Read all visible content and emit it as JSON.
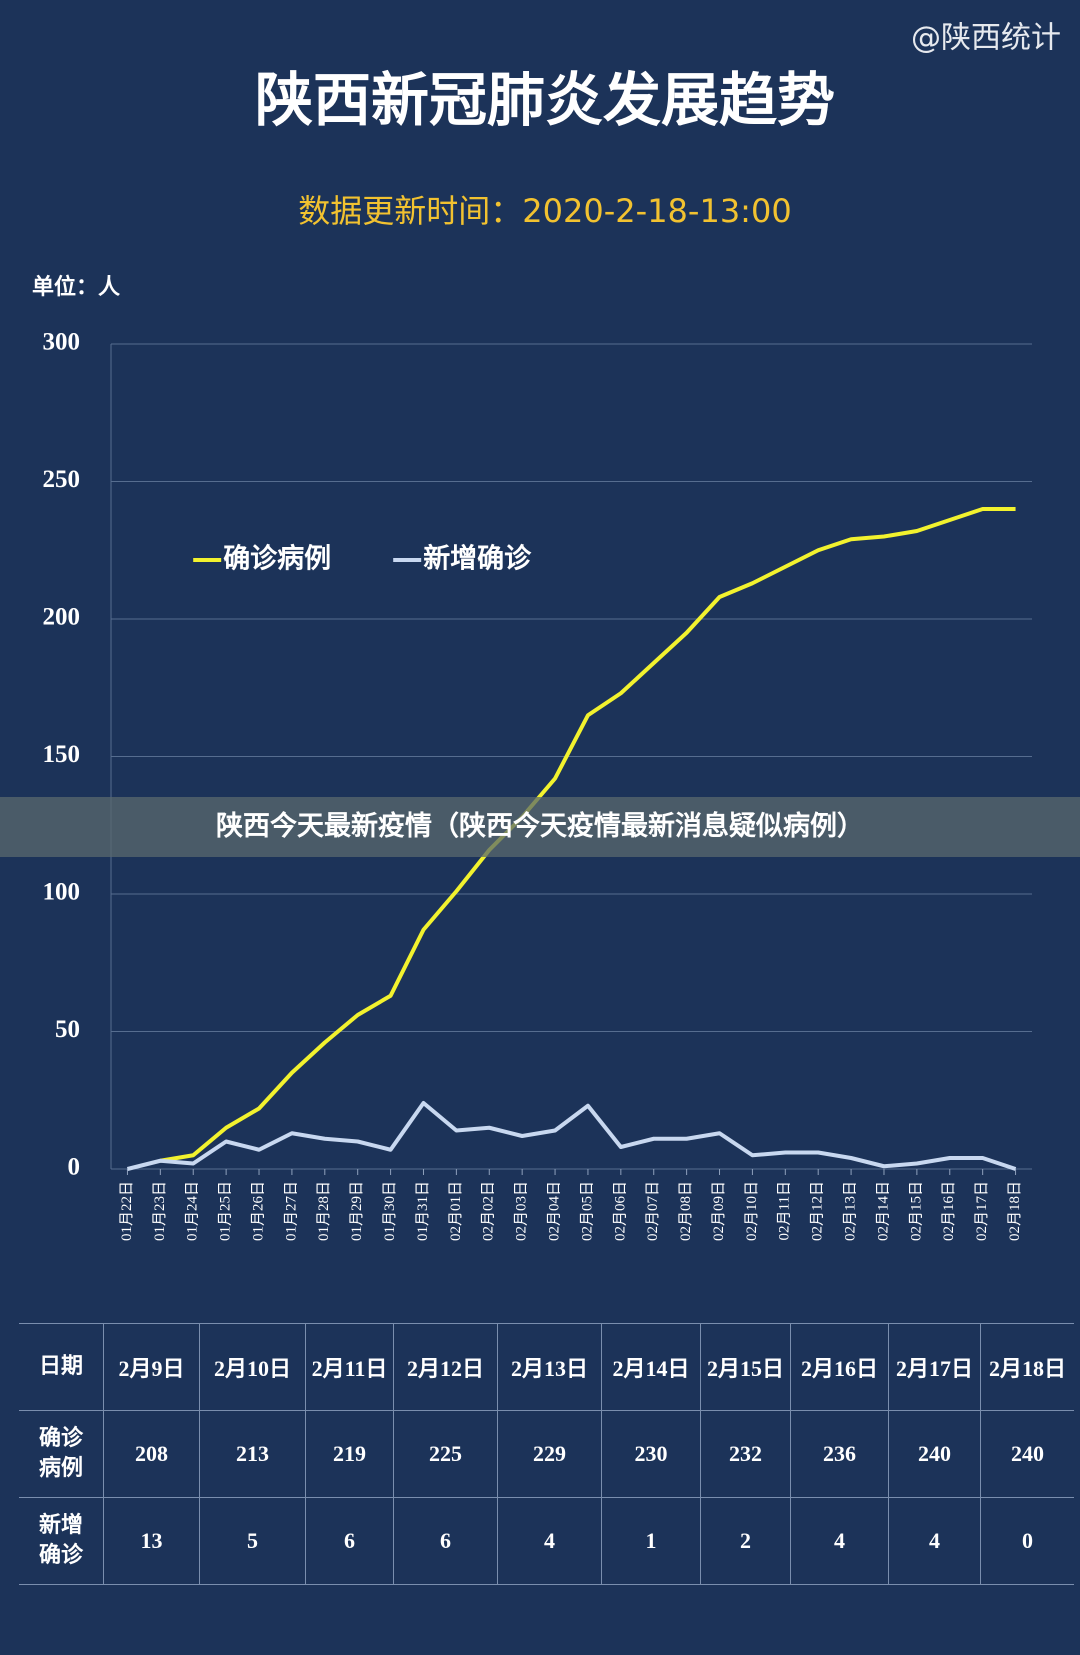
{
  "source_tag": "@陕西统计",
  "banner": "陕西今天最新疫情（陕西今天疫情最新消息疑似病例）",
  "chart_data": {
    "type": "line",
    "title": "陕西新冠肺炎发展趋势",
    "subtitle": "数据更新时间：2020-2-18-13:00",
    "unit_label": "单位：人",
    "categories": [
      "01月22日",
      "01月23日",
      "01月24日",
      "01月25日",
      "01月26日",
      "01月27日",
      "01月28日",
      "01月29日",
      "01月30日",
      "01月31日",
      "02月01日",
      "02月02日",
      "02月03日",
      "02月04日",
      "02月05日",
      "02月06日",
      "02月07日",
      "02月08日",
      "02月09日",
      "02月10日",
      "02月11日",
      "02月12日",
      "02月13日",
      "02月14日",
      "02月15日",
      "02月16日",
      "02月17日",
      "02月18日"
    ],
    "series": [
      {
        "name": "确诊病例",
        "color": "#f2f22e",
        "values": [
          null,
          3,
          5,
          15,
          22,
          35,
          46,
          56,
          63,
          87,
          101,
          116,
          128,
          142,
          165,
          173,
          184,
          195,
          208,
          213,
          219,
          225,
          229,
          230,
          232,
          236,
          240,
          240
        ]
      },
      {
        "name": "新增确诊",
        "color": "#c8d8f0",
        "values": [
          0,
          3,
          2,
          10,
          7,
          13,
          11,
          10,
          7,
          24,
          14,
          15,
          12,
          14,
          23,
          8,
          11,
          11,
          13,
          5,
          6,
          6,
          4,
          1,
          2,
          4,
          4,
          0
        ]
      }
    ],
    "ylim": [
      0,
      300
    ],
    "yticks": [
      0,
      50,
      100,
      150,
      200,
      250,
      300
    ],
    "grid": true
  },
  "table": {
    "header": [
      "日期",
      "2月9日",
      "2月10日",
      "2月11日",
      "2月12日",
      "2月13日",
      "2月14日",
      "2月15日",
      "2月16日",
      "2月17日",
      "2月18日"
    ],
    "rows": [
      [
        "确诊病例",
        208,
        213,
        219,
        225,
        229,
        230,
        232,
        236,
        240,
        240
      ],
      [
        "新增确诊",
        13,
        5,
        6,
        6,
        4,
        1,
        2,
        4,
        4,
        0
      ]
    ]
  }
}
